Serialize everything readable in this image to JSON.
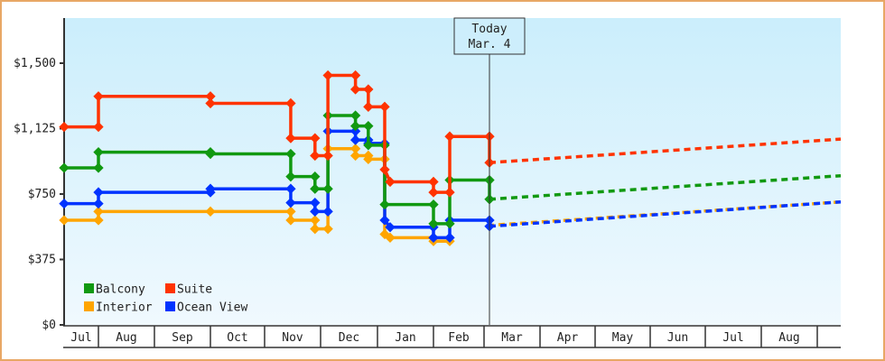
{
  "chart_data": {
    "type": "line",
    "subtype": "step",
    "title": "",
    "xlabel": "",
    "ylabel": "",
    "ylim": [
      0,
      1750
    ],
    "yticks": [
      0,
      375,
      750,
      1125,
      1500
    ],
    "ytick_labels": [
      "$0",
      "$375",
      "$750",
      "$1,125",
      "$1,500"
    ],
    "x_months": [
      "Jul",
      "Aug",
      "Sep",
      "Oct",
      "Nov",
      "Dec",
      "Jan",
      "Feb",
      "Mar",
      "Apr",
      "May",
      "Jun",
      "Jul",
      "Aug"
    ],
    "grid": false,
    "legend_position": "lower-left inside",
    "today_marker": {
      "line1": "Today",
      "line2": "Mar. 4"
    },
    "series": [
      {
        "name": "Balcony",
        "color": "#119911",
        "history": [
          {
            "date": "Jul 1",
            "value": 900
          },
          {
            "date": "Aug 1",
            "value": 900
          },
          {
            "date": "Aug 1",
            "value": 990
          },
          {
            "date": "Oct 1",
            "value": 990
          },
          {
            "date": "Oct 1",
            "value": 980
          },
          {
            "date": "Nov 15",
            "value": 980
          },
          {
            "date": "Nov 15",
            "value": 850
          },
          {
            "date": "Nov 28",
            "value": 850
          },
          {
            "date": "Nov 28",
            "value": 780
          },
          {
            "date": "Dec 5",
            "value": 780
          },
          {
            "date": "Dec 5",
            "value": 1200
          },
          {
            "date": "Dec 20",
            "value": 1200
          },
          {
            "date": "Dec 20",
            "value": 1140
          },
          {
            "date": "Dec 27",
            "value": 1140
          },
          {
            "date": "Dec 27",
            "value": 1030
          },
          {
            "date": "Jan 5",
            "value": 1030
          },
          {
            "date": "Jan 5",
            "value": 690
          },
          {
            "date": "Feb 1",
            "value": 690
          },
          {
            "date": "Feb 1",
            "value": 580
          },
          {
            "date": "Feb 10",
            "value": 580
          },
          {
            "date": "Feb 10",
            "value": 830
          },
          {
            "date": "Mar 4",
            "value": 830
          },
          {
            "date": "Mar 4",
            "value": 720
          }
        ],
        "forecast": [
          {
            "date": "Mar 4",
            "value": 720
          },
          {
            "date": "Sep",
            "value": 855
          }
        ]
      },
      {
        "name": "Suite",
        "color": "#ff3300",
        "history": [
          {
            "date": "Jul 1",
            "value": 1135
          },
          {
            "date": "Aug 1",
            "value": 1135
          },
          {
            "date": "Aug 1",
            "value": 1310
          },
          {
            "date": "Oct 1",
            "value": 1310
          },
          {
            "date": "Oct 1",
            "value": 1270
          },
          {
            "date": "Nov 15",
            "value": 1270
          },
          {
            "date": "Nov 15",
            "value": 1070
          },
          {
            "date": "Nov 28",
            "value": 1070
          },
          {
            "date": "Nov 28",
            "value": 970
          },
          {
            "date": "Dec 5",
            "value": 970
          },
          {
            "date": "Dec 5",
            "value": 1430
          },
          {
            "date": "Dec 20",
            "value": 1430
          },
          {
            "date": "Dec 20",
            "value": 1350
          },
          {
            "date": "Dec 27",
            "value": 1350
          },
          {
            "date": "Dec 27",
            "value": 1250
          },
          {
            "date": "Jan 5",
            "value": 1250
          },
          {
            "date": "Jan 5",
            "value": 890
          },
          {
            "date": "Jan 8",
            "value": 820
          },
          {
            "date": "Feb 1",
            "value": 820
          },
          {
            "date": "Feb 1",
            "value": 760
          },
          {
            "date": "Feb 10",
            "value": 760
          },
          {
            "date": "Feb 10",
            "value": 1080
          },
          {
            "date": "Mar 4",
            "value": 1080
          },
          {
            "date": "Mar 4",
            "value": 930
          }
        ],
        "forecast": [
          {
            "date": "Mar 4",
            "value": 930
          },
          {
            "date": "Sep",
            "value": 1065
          }
        ]
      },
      {
        "name": "Interior",
        "color": "#ffa500",
        "history": [
          {
            "date": "Jul 1",
            "value": 600
          },
          {
            "date": "Aug 1",
            "value": 600
          },
          {
            "date": "Aug 1",
            "value": 650
          },
          {
            "date": "Oct 1",
            "value": 650
          },
          {
            "date": "Nov 15",
            "value": 650
          },
          {
            "date": "Nov 15",
            "value": 600
          },
          {
            "date": "Nov 28",
            "value": 600
          },
          {
            "date": "Nov 28",
            "value": 550
          },
          {
            "date": "Dec 5",
            "value": 550
          },
          {
            "date": "Dec 5",
            "value": 1010
          },
          {
            "date": "Dec 20",
            "value": 1010
          },
          {
            "date": "Dec 20",
            "value": 970
          },
          {
            "date": "Dec 27",
            "value": 970
          },
          {
            "date": "Dec 27",
            "value": 950
          },
          {
            "date": "Jan 5",
            "value": 950
          },
          {
            "date": "Jan 5",
            "value": 520
          },
          {
            "date": "Jan 8",
            "value": 500
          },
          {
            "date": "Feb 1",
            "value": 500
          },
          {
            "date": "Feb 1",
            "value": 480
          },
          {
            "date": "Feb 10",
            "value": 480
          }
        ],
        "forecast": [
          {
            "date": "Mar 4",
            "value": 570
          },
          {
            "date": "Sep",
            "value": 705
          }
        ]
      },
      {
        "name": "Ocean View",
        "color": "#0033ff",
        "history": [
          {
            "date": "Jul 1",
            "value": 695
          },
          {
            "date": "Aug 1",
            "value": 695
          },
          {
            "date": "Aug 1",
            "value": 760
          },
          {
            "date": "Oct 1",
            "value": 760
          },
          {
            "date": "Oct 1",
            "value": 780
          },
          {
            "date": "Nov 15",
            "value": 780
          },
          {
            "date": "Nov 15",
            "value": 700
          },
          {
            "date": "Nov 28",
            "value": 700
          },
          {
            "date": "Nov 28",
            "value": 650
          },
          {
            "date": "Dec 5",
            "value": 650
          },
          {
            "date": "Dec 5",
            "value": 1110
          },
          {
            "date": "Dec 20",
            "value": 1110
          },
          {
            "date": "Dec 20",
            "value": 1060
          },
          {
            "date": "Dec 27",
            "value": 1060
          },
          {
            "date": "Dec 27",
            "value": 1040
          },
          {
            "date": "Jan 5",
            "value": 1040
          },
          {
            "date": "Jan 5",
            "value": 600
          },
          {
            "date": "Jan 8",
            "value": 560
          },
          {
            "date": "Feb 1",
            "value": 560
          },
          {
            "date": "Feb 1",
            "value": 500
          },
          {
            "date": "Feb 10",
            "value": 500
          },
          {
            "date": "Feb 10",
            "value": 600
          },
          {
            "date": "Mar 4",
            "value": 600
          },
          {
            "date": "Mar 4",
            "value": 565
          }
        ],
        "forecast": [
          {
            "date": "Mar 4",
            "value": 565
          },
          {
            "date": "Sep",
            "value": 705
          }
        ]
      }
    ]
  },
  "legend": [
    {
      "label": "Balcony",
      "color": "#119911"
    },
    {
      "label": "Suite",
      "color": "#ff3300"
    },
    {
      "label": "Interior",
      "color": "#ffa500"
    },
    {
      "label": "Ocean View",
      "color": "#0033ff"
    }
  ],
  "today": {
    "line1": "Today",
    "line2": "Mar. 4"
  }
}
